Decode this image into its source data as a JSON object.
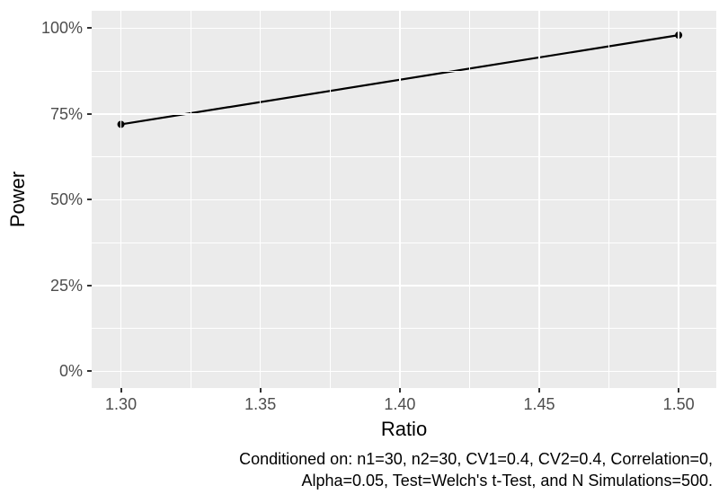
{
  "colors": {
    "background": "#FFFFFF",
    "panel_bg": "#EBEBEB",
    "grid": "#FFFFFF",
    "axis_tick_label": "#4D4D4D",
    "tick_mark": "#333333",
    "axis_title": "#000000",
    "series_line": "#000000",
    "series_point": "#000000",
    "caption_text": "#000000"
  },
  "chart_data": {
    "type": "line",
    "title": "",
    "xlabel": "Ratio",
    "ylabel": "Power",
    "xlim": [
      1.2895,
      1.5135
    ],
    "ylim": [
      -4.85,
      105.1
    ],
    "grid": "major-and-minor",
    "legend_position": "none",
    "x_ticks": [
      {
        "value": 1.3,
        "label": "1.30"
      },
      {
        "value": 1.35,
        "label": "1.35"
      },
      {
        "value": 1.4,
        "label": "1.40"
      },
      {
        "value": 1.45,
        "label": "1.45"
      },
      {
        "value": 1.5,
        "label": "1.50"
      }
    ],
    "x_minor": [
      1.325,
      1.375,
      1.425,
      1.475
    ],
    "y_ticks": [
      {
        "value": 0,
        "label": "0%"
      },
      {
        "value": 25,
        "label": "25%"
      },
      {
        "value": 50,
        "label": "50%"
      },
      {
        "value": 75,
        "label": "75%"
      },
      {
        "value": 100,
        "label": "100%"
      }
    ],
    "y_minor": [
      12.5,
      37.5,
      62.5,
      87.5
    ],
    "y_unit": "%",
    "series": [
      {
        "name": "Power",
        "points": [
          {
            "x": 1.3,
            "y": 72
          },
          {
            "x": 1.5,
            "y": 98
          }
        ]
      }
    ]
  },
  "caption": {
    "line1": "Conditioned on: n1=30, n2=30, CV1=0.4, CV2=0.4, Correlation=0,",
    "line2": "Alpha=0.05, Test=Welch's t-Test, and N Simulations=500."
  }
}
